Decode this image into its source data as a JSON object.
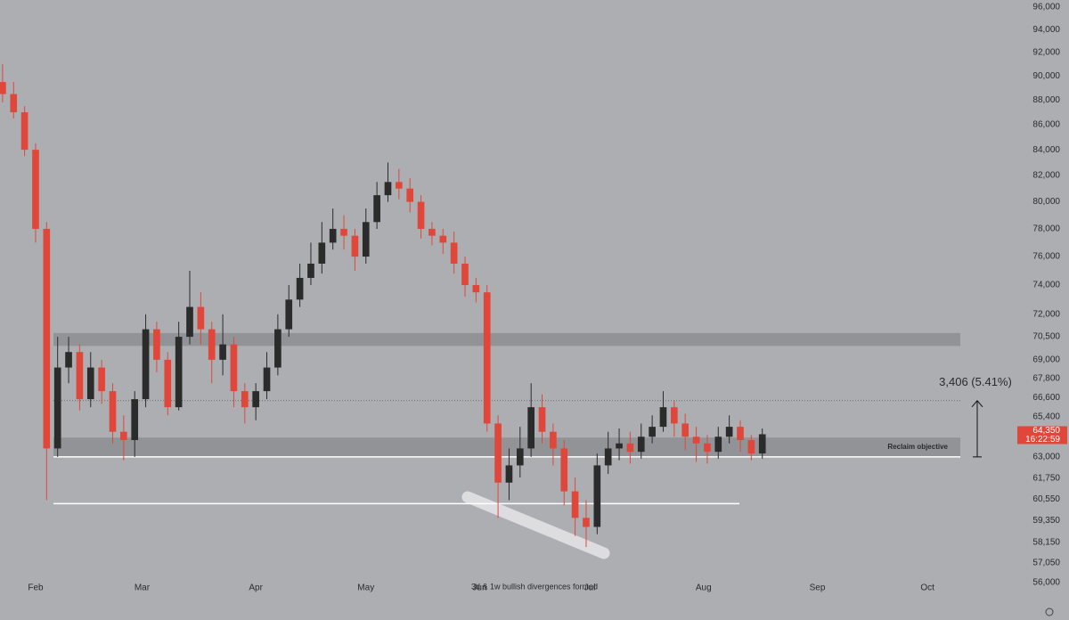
{
  "chart_data": {
    "type": "candlestick",
    "log_scale": true,
    "up_color": "#2b2b2b",
    "down_color": "#e0473a",
    "x": [
      -9,
      -6,
      -3,
      0,
      3,
      6,
      9,
      12,
      15,
      18,
      21,
      24,
      27,
      30,
      33,
      36,
      39,
      42,
      45,
      48,
      51,
      54,
      57,
      60,
      63,
      66,
      69,
      72,
      75,
      78,
      81,
      84,
      87,
      90,
      93,
      96,
      99,
      102,
      105,
      108,
      111,
      114,
      117,
      120,
      123,
      126,
      129,
      132,
      135,
      138,
      141,
      144,
      147,
      150,
      153,
      156,
      159,
      162,
      165,
      168,
      171,
      174,
      177,
      180,
      183,
      186,
      189,
      192,
      195,
      198
    ],
    "open": [
      89500,
      88500,
      87000,
      84000,
      78000,
      63500,
      68500,
      69500,
      66500,
      68500,
      67000,
      64500,
      64000,
      66500,
      71000,
      69000,
      66000,
      70500,
      72500,
      71000,
      69000,
      70000,
      67000,
      66000,
      67000,
      68500,
      71000,
      73000,
      74500,
      75500,
      77000,
      78000,
      77500,
      76000,
      78500,
      80500,
      81500,
      81000,
      80000,
      78000,
      77500,
      77000,
      75500,
      74000,
      73500,
      65000,
      61500,
      62500,
      63500,
      66000,
      64500,
      63500,
      61000,
      59500,
      59000,
      62500,
      63500,
      63800,
      63300,
      64200,
      64800,
      66000,
      65000,
      64200,
      63800,
      63300,
      64200,
      64800,
      64000,
      63200
    ],
    "high": [
      91000,
      89500,
      87500,
      84500,
      78500,
      70500,
      70500,
      70000,
      69500,
      69000,
      67500,
      65500,
      67000,
      72000,
      71500,
      69500,
      71500,
      75000,
      73500,
      71500,
      72000,
      70500,
      67500,
      67500,
      69500,
      72000,
      74000,
      75500,
      77000,
      78500,
      79500,
      79000,
      78000,
      79500,
      81500,
      83000,
      82500,
      81800,
      80500,
      78500,
      78000,
      77800,
      76000,
      74500,
      74000,
      65500,
      63500,
      64800,
      67500,
      66800,
      65000,
      64000,
      61800,
      60500,
      63200,
      64500,
      64700,
      64500,
      65000,
      65500,
      67000,
      66400,
      65600,
      64800,
      64300,
      64800,
      65500,
      65200,
      64300,
      64700
    ],
    "low": [
      87800,
      86500,
      83500,
      77000,
      60500,
      63000,
      67500,
      65800,
      66000,
      66200,
      63800,
      62800,
      63000,
      66000,
      68200,
      65500,
      65800,
      70000,
      70000,
      67500,
      68000,
      66000,
      65000,
      65200,
      66500,
      68000,
      70500,
      72500,
      74000,
      74800,
      76500,
      76500,
      75000,
      75500,
      78000,
      80000,
      80200,
      79200,
      77300,
      76800,
      76200,
      74800,
      73200,
      72800,
      64500,
      59500,
      60500,
      61800,
      63000,
      63800,
      62500,
      60200,
      58500,
      57900,
      58600,
      62000,
      62800,
      62600,
      62900,
      63800,
      64500,
      64200,
      63400,
      62700,
      62600,
      62900,
      63800,
      63300,
      62800,
      62900
    ],
    "close": [
      88500,
      87000,
      84000,
      78000,
      63500,
      68500,
      69500,
      66500,
      68500,
      67000,
      64500,
      64000,
      66500,
      71000,
      69000,
      66000,
      70500,
      72500,
      71000,
      69000,
      70000,
      67000,
      66000,
      67000,
      68500,
      71000,
      73000,
      74500,
      75500,
      77000,
      78000,
      77500,
      76000,
      78500,
      80500,
      81500,
      81000,
      80000,
      78000,
      77500,
      77000,
      75500,
      74000,
      73500,
      65000,
      61500,
      62500,
      63500,
      66000,
      64500,
      63500,
      61000,
      59500,
      59000,
      62500,
      63500,
      63800,
      63300,
      64200,
      64800,
      66000,
      65000,
      64200,
      63800,
      63300,
      64200,
      64800,
      64000,
      63200,
      64350
    ],
    "xlim": [
      -9.7,
      267
    ],
    "ylim": [
      54800,
      96650
    ],
    "xticks": [
      {
        "value": 0,
        "label": "Feb"
      },
      {
        "value": 29,
        "label": "Mar"
      },
      {
        "value": 60,
        "label": "Apr"
      },
      {
        "value": 90,
        "label": "May"
      },
      {
        "value": 121,
        "label": "Jun"
      },
      {
        "value": 151,
        "label": "Jul"
      },
      {
        "value": 182,
        "label": "Aug"
      },
      {
        "value": 213,
        "label": "Sep"
      },
      {
        "value": 243,
        "label": "Oct"
      }
    ],
    "yticks": [
      {
        "value": 56000,
        "label": "56,000"
      },
      {
        "value": 57050,
        "label": "57,050"
      },
      {
        "value": 58150,
        "label": "58,150"
      },
      {
        "value": 59350,
        "label": "59,350"
      },
      {
        "value": 60550,
        "label": "60,550"
      },
      {
        "value": 61750,
        "label": "61,750"
      },
      {
        "value": 63000,
        "label": "63,000"
      },
      {
        "value": 65400,
        "label": "65,400"
      },
      {
        "value": 66600,
        "label": "66,600"
      },
      {
        "value": 67800,
        "label": "67,800"
      },
      {
        "value": 69000,
        "label": "69,000"
      },
      {
        "value": 70500,
        "label": "70,500"
      },
      {
        "value": 72000,
        "label": "72,000"
      },
      {
        "value": 74000,
        "label": "74,000"
      },
      {
        "value": 76000,
        "label": "76,000"
      },
      {
        "value": 78000,
        "label": "78,000"
      },
      {
        "value": 80000,
        "label": "80,000"
      },
      {
        "value": 82000,
        "label": "82,000"
      },
      {
        "value": 84000,
        "label": "84,000"
      },
      {
        "value": 86000,
        "label": "86,000"
      },
      {
        "value": 88000,
        "label": "88,000"
      },
      {
        "value": 90000,
        "label": "90,000"
      },
      {
        "value": 92000,
        "label": "92,000"
      },
      {
        "value": 94000,
        "label": "94,000"
      },
      {
        "value": 96000,
        "label": "96,000"
      }
    ],
    "zones": [
      {
        "low": 69900,
        "high": 70750
      },
      {
        "low": 63000,
        "high": 64150,
        "label": "Reclaim objective"
      }
    ],
    "levels": [
      63000,
      60300
    ],
    "measure": {
      "from": 63000,
      "to": 66406,
      "label": "3,406 (5.41%)"
    },
    "last_price": {
      "value": 64350,
      "label": "64,350"
    },
    "countdown": "16:22:59",
    "note": "3d & 1w bullish divergences formed"
  }
}
